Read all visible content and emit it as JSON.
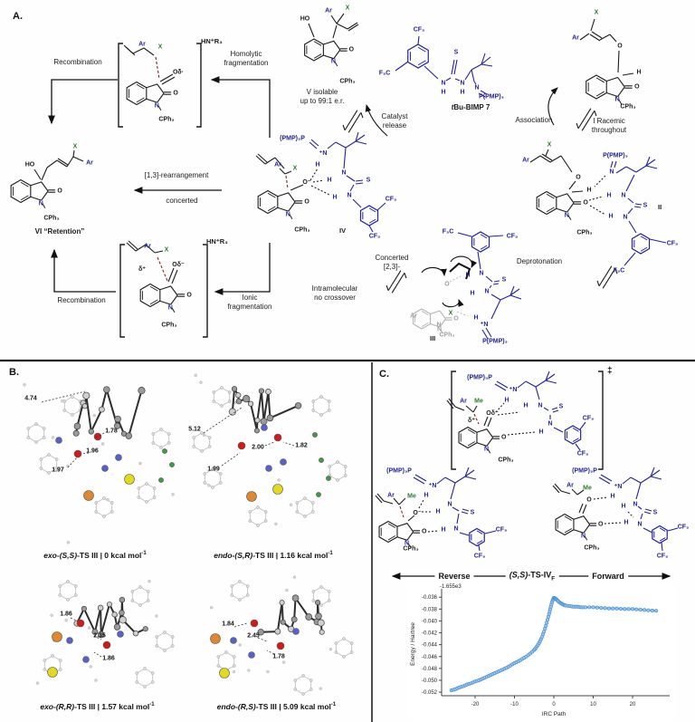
{
  "figure": {
    "panel_a_label": "A.",
    "panel_b_label": "B.",
    "panel_c_label": "C."
  },
  "glyph_atoms": {
    "n": "N",
    "o": "O"
  },
  "panel_a": {
    "flow": {
      "recombination_top": "Recombination",
      "homolytic_1": "Homolytic",
      "homolytic_2": "fragmentation",
      "hnr3_top": "HN⁺R₃",
      "v_1": "V isolable",
      "v_2": "up to 99:1 e.r.",
      "catalyst_release_1": "Catalyst",
      "catalyst_release_2": "release",
      "catalyst_it": "t",
      "catalyst_rest": "Bu-BIMP 7",
      "association": "Association",
      "i_1": "I Racemic",
      "i_2": "throughout",
      "rearrangement": "[1,3]-rearrangement",
      "concerted": "concerted",
      "vi": "VI “Retention”",
      "hnr3_bottom": "HN⁺R₃",
      "recombination_bottom": "Recombination",
      "ionic_1": "Ionic",
      "ionic_2": "fragmentation",
      "iv": "IV",
      "concerted23_1": "Concerted",
      "concerted23_2": "[2,3]-",
      "intramolecular_1": "Intramolecular",
      "intramolecular_2": "no crossover",
      "deprotonation": "Deprotonation",
      "ii": "II",
      "iii": "III"
    },
    "structures": {
      "radical": [
        {
          "t": "Ar",
          "c": "b"
        },
        {
          "t": "X",
          "c": "g"
        },
        {
          "t": "Oδ·",
          "c": "k"
        },
        {
          "t": "CPh₃",
          "c": "k"
        }
      ],
      "v": [
        {
          "t": "HO",
          "c": "k"
        },
        {
          "t": "Ar",
          "c": "b"
        },
        {
          "t": "X",
          "c": "g"
        },
        {
          "t": "CPh₃",
          "c": "k"
        }
      ],
      "cat7": [
        {
          "t": "CF₃",
          "c": "b"
        },
        {
          "t": "F₃C",
          "c": "b"
        },
        {
          "t": "S",
          "c": "b"
        },
        {
          "t": "N",
          "c": "b"
        },
        {
          "t": "H",
          "c": "b"
        },
        {
          "t": "N",
          "c": "b"
        },
        {
          "t": "H",
          "c": "b"
        },
        {
          "t": "N",
          "c": "b"
        },
        {
          "t": "P(PMP)₃",
          "c": "b"
        }
      ],
      "sub_i": [
        {
          "t": "X",
          "c": "g"
        },
        {
          "t": "Ar",
          "c": "b"
        },
        {
          "t": "O",
          "c": "k"
        },
        {
          "t": "H",
          "c": "k"
        },
        {
          "t": "CPh₃",
          "c": "k"
        }
      ],
      "vi": [
        {
          "t": "HO",
          "c": "k"
        },
        {
          "t": "X",
          "c": "g"
        },
        {
          "t": "Ar",
          "c": "b"
        },
        {
          "t": "CPh₃",
          "c": "k"
        }
      ],
      "iv": [
        {
          "t": "(PMP)₃P",
          "c": "b"
        },
        {
          "t": "⁺N",
          "c": "b"
        },
        {
          "t": "H",
          "c": "b"
        },
        {
          "t": "Ar",
          "c": "b"
        },
        {
          "t": "X",
          "c": "g"
        },
        {
          "t": "O⁻",
          "c": "k"
        },
        {
          "t": "H",
          "c": "b"
        },
        {
          "t": "N",
          "c": "b"
        },
        {
          "t": "S",
          "c": "b"
        },
        {
          "t": "H",
          "c": "b"
        },
        {
          "t": "N",
          "c": "b"
        },
        {
          "t": "CF₃",
          "c": "b"
        },
        {
          "t": "CF₃",
          "c": "b"
        },
        {
          "t": "CPh₃",
          "c": "k"
        }
      ],
      "ionic": [
        {
          "t": "Ar",
          "c": "b"
        },
        {
          "t": "X",
          "c": "g"
        },
        {
          "t": "δ⁺",
          "c": "k"
        },
        {
          "t": "Oδ⁻",
          "c": "k"
        },
        {
          "t": "CPh₃",
          "c": "k"
        }
      ],
      "ii": [
        {
          "t": "X",
          "c": "g"
        },
        {
          "t": "Ar",
          "c": "b"
        },
        {
          "t": "O",
          "c": "k"
        },
        {
          "t": "H",
          "c": "k"
        },
        {
          "t": "P(PMP)₃",
          "c": "b"
        },
        {
          "t": "N",
          "c": "b"
        },
        {
          "t": "H",
          "c": "b"
        },
        {
          "t": "N",
          "c": "b"
        },
        {
          "t": "H",
          "c": "b"
        },
        {
          "t": "N",
          "c": "b"
        },
        {
          "t": "S",
          "c": "b"
        },
        {
          "t": "CF₃",
          "c": "b"
        },
        {
          "t": "F₃C",
          "c": "b"
        },
        {
          "t": "CPh₃",
          "c": "k"
        }
      ],
      "iii": [
        {
          "t": "F₃C",
          "c": "b"
        },
        {
          "t": "CF₃",
          "c": "b"
        },
        {
          "t": "H",
          "c": "b"
        },
        {
          "t": "N",
          "c": "b"
        },
        {
          "t": "S",
          "c": "b"
        },
        {
          "t": "H",
          "c": "b"
        },
        {
          "t": "N",
          "c": "b"
        },
        {
          "t": "O",
          "c": "gy"
        },
        {
          "t": "X",
          "c": "g"
        },
        {
          "t": "H",
          "c": "b"
        },
        {
          "t": "⁺N",
          "c": "b"
        },
        {
          "t": "Ar",
          "c": "gy"
        },
        {
          "t": "N",
          "c": "gy"
        },
        {
          "t": "CPh₃",
          "c": "gy"
        },
        {
          "t": "P(PMP)₃",
          "c": "b"
        }
      ]
    }
  },
  "panel_b": {
    "structures": [
      {
        "caption_italic": "exo-(S,S)",
        "caption_rest": "-TS III | 0 kcal mol",
        "caption_sup": "-1",
        "distances": [
          "4.74",
          "1.78",
          "1.96",
          "1.97"
        ]
      },
      {
        "caption_italic": "endo-(S,R)",
        "caption_rest": "-TS III | 1.16 kcal mol",
        "caption_sup": "-1",
        "distances": [
          "5.12",
          "2.00",
          "1.82",
          "1.99"
        ]
      },
      {
        "caption_italic": "exo-(R,R)",
        "caption_rest": "-TS III | 1.57 kcal mol",
        "caption_sup": "-1",
        "distances": [
          "1.86",
          "2.35",
          "1.86"
        ]
      },
      {
        "caption_italic": "endo-(R,S)",
        "caption_rest": "-TS III | 5.09 kcal mol",
        "caption_sup": "-1",
        "distances": [
          "1.84",
          "2.45",
          "1.78"
        ]
      }
    ],
    "atom_colors": {
      "carbon": "#8f8f8f",
      "nitrogen": "#5661c9",
      "oxygen": "#d01b1b",
      "phosphorus": "#e0872f",
      "sulfur": "#e3da1f",
      "fluorine": "#3f9b3f"
    }
  },
  "panel_c": {
    "dagger": "‡",
    "band": {
      "reverse": "Reverse",
      "ts_it": "(S,S)",
      "ts_rest": "-TS-IV",
      "ts_sub": "F",
      "forward": "Forward"
    },
    "structures": {
      "ts": [
        {
          "t": "(PMP)₃P",
          "c": "b"
        },
        {
          "t": "⁺N",
          "c": "b"
        },
        {
          "t": "H",
          "c": "b"
        },
        {
          "t": "Ar",
          "c": "b"
        },
        {
          "t": "Me",
          "c": "g"
        },
        {
          "t": "δ⁺",
          "c": "k"
        },
        {
          "t": "Oδ⁻",
          "c": "k"
        },
        {
          "t": "H",
          "c": "b"
        },
        {
          "t": "N",
          "c": "b"
        },
        {
          "t": "S",
          "c": "b"
        },
        {
          "t": "N",
          "c": "b"
        },
        {
          "t": "H",
          "c": "b"
        },
        {
          "t": "CF₃",
          "c": "b"
        },
        {
          "t": "CF₃",
          "c": "b"
        },
        {
          "t": "CPh₃",
          "c": "k"
        }
      ],
      "left": [
        {
          "t": "(PMP)₃P",
          "c": "b"
        },
        {
          "t": "⁺N",
          "c": "b"
        },
        {
          "t": "H",
          "c": "b"
        },
        {
          "t": "Ar",
          "c": "b"
        },
        {
          "t": "Me",
          "c": "g"
        },
        {
          "t": "O⁻",
          "c": "k"
        },
        {
          "t": "H",
          "c": "b"
        },
        {
          "t": "N",
          "c": "b"
        },
        {
          "t": "S",
          "c": "b"
        },
        {
          "t": "H",
          "c": "b"
        },
        {
          "t": "N",
          "c": "b"
        },
        {
          "t": "CF₃",
          "c": "b"
        },
        {
          "t": "CF₃",
          "c": "b"
        },
        {
          "t": "CPh₃",
          "c": "k"
        }
      ],
      "right": [
        {
          "t": "(PMP)₃P",
          "c": "b"
        },
        {
          "t": "⁺N",
          "c": "b"
        },
        {
          "t": "H",
          "c": "b"
        },
        {
          "t": "Ar",
          "c": "b"
        },
        {
          "t": "Me",
          "c": "g"
        },
        {
          "t": "O",
          "c": "k"
        },
        {
          "t": "H",
          "c": "b"
        },
        {
          "t": "N",
          "c": "b"
        },
        {
          "t": "S",
          "c": "b"
        },
        {
          "t": "H",
          "c": "b"
        },
        {
          "t": "N",
          "c": "b"
        },
        {
          "t": "CF₃",
          "c": "b"
        },
        {
          "t": "CF₃",
          "c": "b"
        },
        {
          "t": "CPh₃",
          "c": "k"
        }
      ]
    }
  },
  "chart_data": {
    "type": "line",
    "title": "",
    "xlabel": "IRC Path",
    "ylabel": "Energy / Hartree",
    "offset": "-1.655e3",
    "legend": false,
    "grid": false,
    "xlim": [
      -28.5,
      28.5
    ],
    "ylim": [
      -0.0526,
      -0.0352
    ],
    "xticks": [
      -20,
      -10,
      0,
      10,
      20
    ],
    "ytick_labels": [
      "-0.036",
      "-0.038",
      "-0.040",
      "-0.042",
      "-0.044",
      "-0.046",
      "-0.048",
      "-0.050",
      "-0.052"
    ],
    "line_color": "#4a90d5",
    "marker_fill": "#9ec7ea",
    "x": [
      -26,
      -25,
      -24,
      -23,
      -22,
      -21,
      -20,
      -19,
      -18,
      -17,
      -16,
      -15,
      -14,
      -13,
      -12,
      -11,
      -10,
      -9,
      -8,
      -7,
      -6,
      -5,
      -4.5,
      -4,
      -3.5,
      -3,
      -2.5,
      -2,
      -1.6,
      -1.2,
      -0.9,
      -0.6,
      -0.3,
      0,
      0.3,
      0.7,
      1,
      1.5,
      2,
      2.5,
      3,
      4,
      5,
      6,
      7,
      8,
      10,
      12,
      14,
      16,
      18,
      20,
      22,
      24,
      26
    ],
    "y": [
      -0.0517,
      -0.0515,
      -0.0512,
      -0.051,
      -0.0507,
      -0.0505,
      -0.0502,
      -0.05,
      -0.0497,
      -0.0494,
      -0.0491,
      -0.0488,
      -0.0485,
      -0.0482,
      -0.0479,
      -0.0475,
      -0.0471,
      -0.0468,
      -0.0464,
      -0.046,
      -0.0455,
      -0.0449,
      -0.0445,
      -0.044,
      -0.0434,
      -0.0427,
      -0.0418,
      -0.0408,
      -0.0398,
      -0.0388,
      -0.038,
      -0.0372,
      -0.0365,
      -0.0361,
      -0.0362,
      -0.0364,
      -0.0366,
      -0.0369,
      -0.0371,
      -0.0373,
      -0.0374,
      -0.0375,
      -0.0376,
      -0.0376,
      -0.0377,
      -0.0377,
      -0.0377,
      -0.0378,
      -0.0379,
      -0.0379,
      -0.038,
      -0.038,
      -0.0381,
      -0.0382,
      -0.0383
    ]
  }
}
